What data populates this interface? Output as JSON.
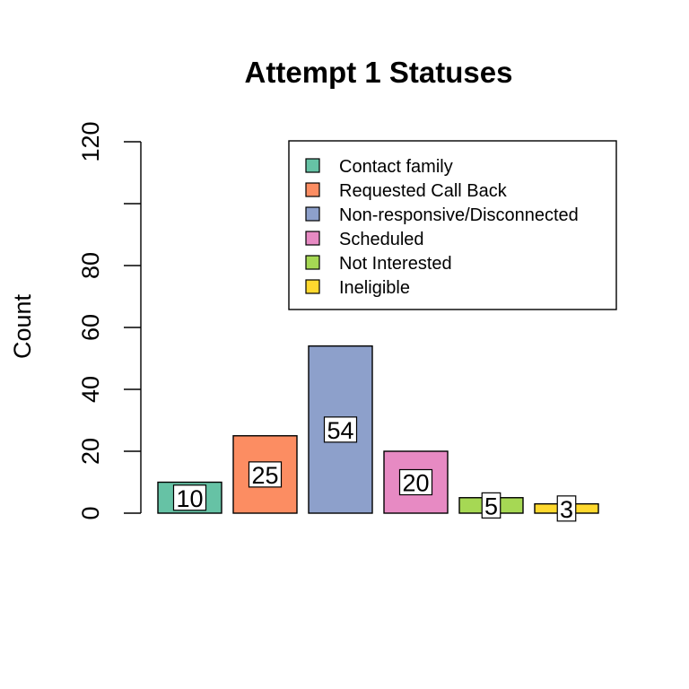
{
  "chart_data": {
    "type": "bar",
    "title": "Attempt 1 Statuses",
    "xlabel": "",
    "ylabel": "Count",
    "ylim": [
      0,
      120
    ],
    "yticks": [
      0,
      20,
      40,
      60,
      80,
      100,
      120
    ],
    "ytick_labels": [
      "0",
      "20",
      "40",
      "60",
      "80",
      "",
      "120"
    ],
    "grid": false,
    "legend_position": "top-right",
    "categories": [
      "Contact family",
      "Requested Call Back",
      "Non-responsive/Disconnected",
      "Scheduled",
      "Not Interested",
      "Ineligible"
    ],
    "values": [
      10,
      25,
      54,
      20,
      5,
      3
    ],
    "data_labels": [
      "10",
      "25",
      "54",
      "20",
      "5",
      "3"
    ],
    "colors": [
      "#66C2A5",
      "#FC8D62",
      "#8DA0CB",
      "#E78AC3",
      "#A6D854",
      "#FFD92F"
    ]
  }
}
